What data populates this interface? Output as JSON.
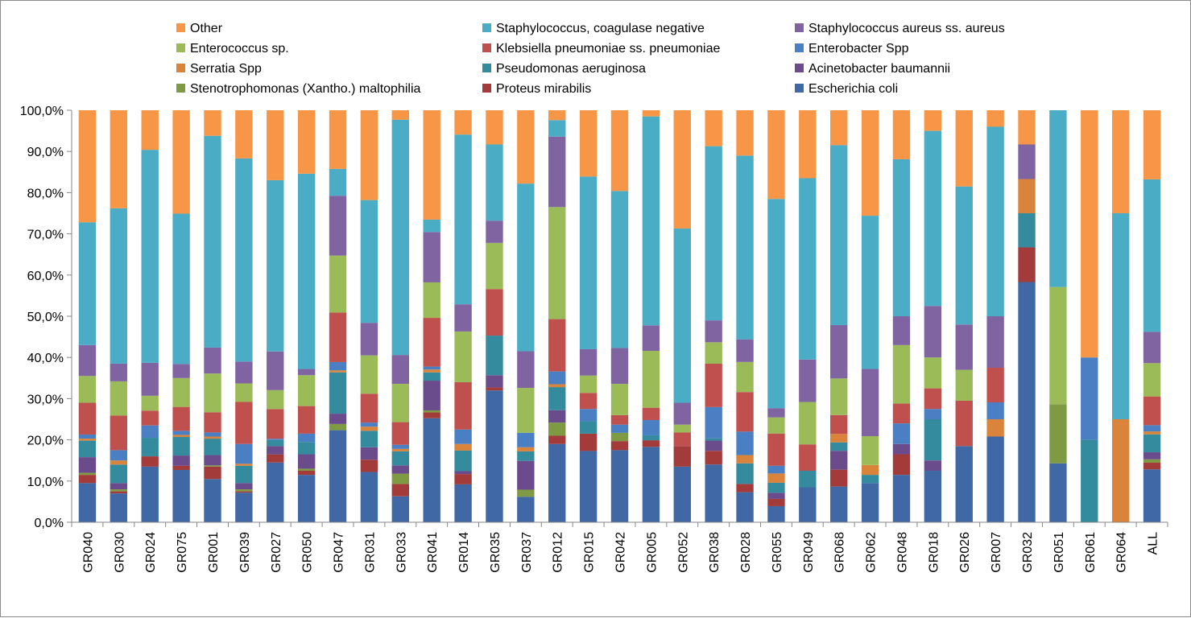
{
  "chart_data": {
    "type": "bar",
    "stacked": true,
    "normalized": "percent",
    "grid": false,
    "legend_position": "top",
    "ylim": [
      0,
      100
    ],
    "y_ticks": [
      "0,0%",
      "10,0%",
      "20,0%",
      "30,0%",
      "40,0%",
      "50,0%",
      "60,0%",
      "70,0%",
      "80,0%",
      "90,0%",
      "100,0%"
    ],
    "categories": [
      "GR040",
      "GR030",
      "GR024",
      "GR075",
      "GR001",
      "GR039",
      "GR027",
      "GR050",
      "GR047",
      "GR031",
      "GR033",
      "GR041",
      "GR014",
      "GR035",
      "GR037",
      "GR012",
      "GR015",
      "GR042",
      "GR005",
      "GR052",
      "GR038",
      "GR028",
      "GR055",
      "GR049",
      "GR068",
      "GR062",
      "GR048",
      "GR018",
      "GR026",
      "GR007",
      "GR032",
      "GR051",
      "GR061",
      "GR064",
      "ALL"
    ],
    "legend_order": [
      "Other",
      "Staphylococcus, coagulase negative",
      "Staphylococcus aureus ss. aureus",
      "Enterococcus sp.",
      "Klebsiella pneumoniae ss. pneumoniae",
      "Enterobacter Spp",
      "Serratia Spp",
      "Pseudomonas aeruginosa",
      "Acinetobacter baumannii",
      "Stenotrophomonas (Xantho.) maltophilia",
      "Proteus mirabilis",
      "Escherichia coli"
    ],
    "series": [
      {
        "name": "Escherichia coli",
        "color": "#4068a4",
        "values": [
          9.5,
          7.0,
          13.5,
          12.7,
          10.5,
          7.2,
          14.5,
          11.5,
          22.3,
          12.2,
          6.3,
          25.2,
          9.2,
          32.0,
          6.2,
          19.0,
          17.3,
          17.5,
          18.3,
          13.5,
          14.0,
          7.3,
          4.0,
          8.5,
          8.5,
          9.5,
          11.5,
          12.5,
          18.5,
          20.8,
          58.3,
          14.3,
          0,
          0,
          12.7
        ]
      },
      {
        "name": "Proteus mirabilis",
        "color": "#a33b3b",
        "values": [
          2.0,
          0.5,
          2.5,
          1.0,
          3.0,
          0.3,
          2.0,
          1.0,
          0,
          3.0,
          3.0,
          1.4,
          2.5,
          0.7,
          0,
          2.0,
          4.2,
          2.2,
          1.6,
          5.0,
          3.3,
          2.0,
          1.8,
          0,
          4.0,
          0,
          5.0,
          0,
          0,
          0,
          8.4,
          0,
          0,
          0,
          1.6
        ]
      },
      {
        "name": "Stenotrophomonas (Xantho.) maltophilia",
        "color": "#7e9a42",
        "values": [
          0.5,
          0.5,
          0,
          0,
          0.3,
          0.5,
          0,
          0.5,
          1.5,
          0,
          2.5,
          0.5,
          0,
          0,
          1.7,
          3.2,
          0,
          2.0,
          0,
          0,
          0,
          0,
          0,
          0,
          0,
          0,
          0,
          0,
          0,
          0,
          0,
          14.3,
          0,
          0,
          0.8
        ]
      },
      {
        "name": "Acinetobacter baumannii",
        "color": "#6a4c8c",
        "values": [
          3.8,
          1.5,
          0,
          2.5,
          2.5,
          1.5,
          2.0,
          3.5,
          2.5,
          3.0,
          2.0,
          7.2,
          0.7,
          3.0,
          7.0,
          3.0,
          0,
          0,
          0,
          0,
          2.5,
          0,
          1.5,
          0,
          4.5,
          0,
          2.5,
          2.5,
          0,
          0,
          0,
          0,
          0,
          0,
          1.7
        ]
      },
      {
        "name": "Pseudomonas aeruginosa",
        "color": "#358b9e",
        "values": [
          4.0,
          4.5,
          4.5,
          4.5,
          4.0,
          4.2,
          1.5,
          3.0,
          10.0,
          4.0,
          3.4,
          2.0,
          5.0,
          9.6,
          2.3,
          5.6,
          3.0,
          0,
          1.2,
          0,
          0.5,
          5.0,
          2.5,
          4.0,
          2.0,
          2.0,
          0,
          10.0,
          0,
          0,
          8.3,
          0,
          20.0,
          0,
          4.3
        ]
      },
      {
        "name": "Serratia Spp",
        "color": "#d9833b",
        "values": [
          0.5,
          1.0,
          0,
          0.5,
          0.5,
          0.5,
          0,
          0,
          0.5,
          1.0,
          0.6,
          0.7,
          1.6,
          0,
          1.0,
          0.7,
          0,
          0,
          0,
          0,
          0,
          2.0,
          2.3,
          0,
          2.0,
          2.4,
          0,
          0,
          0,
          4.2,
          8.3,
          0,
          0,
          25.0,
          0.7
        ]
      },
      {
        "name": "Enterobacter Spp",
        "color": "#4a7fc4",
        "values": [
          1.0,
          2.5,
          3.0,
          1.0,
          1.0,
          4.8,
          0.3,
          2.0,
          2.0,
          1.0,
          1.0,
          0.7,
          3.5,
          0,
          3.5,
          3.1,
          3.0,
          2.0,
          3.7,
          0,
          7.6,
          5.7,
          1.9,
          0,
          0,
          0,
          5.0,
          2.5,
          0,
          4.1,
          0,
          0,
          20.0,
          0,
          1.5
        ]
      },
      {
        "name": "Klebsiella pneumoniae ss. pneumoniae",
        "color": "#c0504d",
        "values": [
          7.7,
          8.4,
          3.6,
          5.8,
          4.9,
          10.2,
          7.2,
          6.7,
          12.0,
          7.0,
          5.5,
          11.8,
          11.5,
          11.3,
          0,
          12.7,
          3.9,
          2.3,
          3.0,
          3.3,
          10.5,
          9.6,
          8.0,
          6.4,
          4.5,
          0,
          4.8,
          5.0,
          11.0,
          8.4,
          0,
          0,
          0,
          0,
          6.9
        ]
      },
      {
        "name": "Enterococcus sp.",
        "color": "#9bbb59",
        "values": [
          6.5,
          8.3,
          3.6,
          7.0,
          9.4,
          4.5,
          4.6,
          7.5,
          13.8,
          9.3,
          9.3,
          8.6,
          12.3,
          11.2,
          10.9,
          27.2,
          4.2,
          7.6,
          13.8,
          1.9,
          5.2,
          7.3,
          4.0,
          10.3,
          8.7,
          7.0,
          14.2,
          7.5,
          7.5,
          0,
          0,
          28.5,
          0,
          0,
          8.0
        ]
      },
      {
        "name": "Staphylococcus aureus ss. aureus",
        "color": "#8064a2",
        "values": [
          7.5,
          4.3,
          8.0,
          3.4,
          6.3,
          5.3,
          9.4,
          1.5,
          14.5,
          7.9,
          7.0,
          12.2,
          6.6,
          5.4,
          8.9,
          17.1,
          6.4,
          8.7,
          6.2,
          5.3,
          5.3,
          5.5,
          2.3,
          10.3,
          12.7,
          16.3,
          7.0,
          12.5,
          11.0,
          12.5,
          8.4,
          0,
          0,
          0,
          7.5
        ]
      },
      {
        "name": "Staphylococcus, coagulase negative",
        "color": "#4bacc6",
        "values": [
          29.8,
          37.7,
          51.7,
          36.5,
          51.4,
          49.3,
          41.6,
          47.4,
          6.5,
          29.8,
          57.1,
          3.0,
          41.2,
          18.5,
          40.7,
          4.0,
          41.9,
          38.1,
          50.7,
          42.3,
          42.2,
          44.6,
          51.9,
          44.0,
          42.8,
          37.2,
          38.1,
          42.5,
          33.5,
          46.0,
          0,
          42.9,
          0,
          50.0,
          36.6
        ]
      },
      {
        "name": "Other",
        "color": "#f79646",
        "values": [
          27.2,
          23.8,
          9.6,
          25.1,
          6.2,
          11.7,
          17.0,
          15.4,
          14.2,
          21.8,
          2.3,
          26.5,
          5.9,
          8.3,
          17.8,
          2.4,
          16.1,
          19.6,
          1.5,
          28.7,
          8.7,
          11.0,
          22.0,
          16.5,
          8.3,
          25.6,
          11.9,
          5.0,
          18.5,
          4.0,
          8.3,
          0,
          60.0,
          25.0,
          16.6
        ]
      }
    ]
  }
}
